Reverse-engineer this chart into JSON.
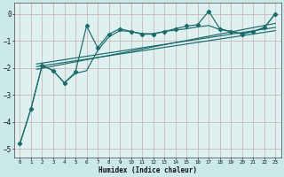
{
  "xlabel": "Humidex (Indice chaleur)",
  "bg_color": "#cce9e9",
  "plot_bg_color": "#dff0f0",
  "grid_color": "#c8b8b8",
  "line_color": "#1a6b6b",
  "xlim": [
    -0.5,
    23.5
  ],
  "ylim": [
    -5.3,
    0.4
  ],
  "yticks": [
    0,
    -1,
    -2,
    -3,
    -4,
    -5
  ],
  "xticks": [
    0,
    1,
    2,
    3,
    4,
    5,
    6,
    7,
    8,
    9,
    10,
    11,
    12,
    13,
    14,
    15,
    16,
    17,
    18,
    19,
    20,
    21,
    22,
    23
  ],
  "jagged_x": [
    0,
    1,
    2,
    3,
    4,
    5,
    6,
    7,
    8,
    9,
    10,
    11,
    12,
    13,
    14,
    15,
    16,
    17,
    18,
    19,
    20,
    21,
    22,
    23
  ],
  "jagged_y": [
    -4.8,
    -3.5,
    -1.9,
    -2.1,
    -2.55,
    -2.15,
    -0.45,
    -1.25,
    -0.75,
    -0.55,
    -0.65,
    -0.75,
    -0.75,
    -0.65,
    -0.55,
    -0.45,
    -0.4,
    0.1,
    -0.55,
    -0.65,
    -0.75,
    -0.65,
    -0.5,
    0.0
  ],
  "lower_x": [
    0,
    1,
    2,
    3,
    4,
    5,
    6,
    7,
    8,
    9,
    10,
    11,
    12,
    13,
    14,
    15,
    16,
    17,
    18,
    19,
    20,
    21,
    22,
    23
  ],
  "lower_y": [
    -4.8,
    -3.5,
    -1.9,
    -2.1,
    -2.55,
    -2.2,
    -2.1,
    -1.35,
    -0.85,
    -0.62,
    -0.65,
    -0.73,
    -0.73,
    -0.65,
    -0.6,
    -0.55,
    -0.48,
    -0.43,
    -0.58,
    -0.65,
    -0.72,
    -0.65,
    -0.52,
    0.02
  ],
  "trend1": {
    "x": [
      1.5,
      23
    ],
    "y": [
      -1.85,
      -0.5
    ]
  },
  "trend2": {
    "x": [
      1.5,
      23
    ],
    "y": [
      -1.95,
      -0.62
    ]
  },
  "trend3": {
    "x": [
      1.5,
      23
    ],
    "y": [
      -2.05,
      -0.35
    ]
  }
}
